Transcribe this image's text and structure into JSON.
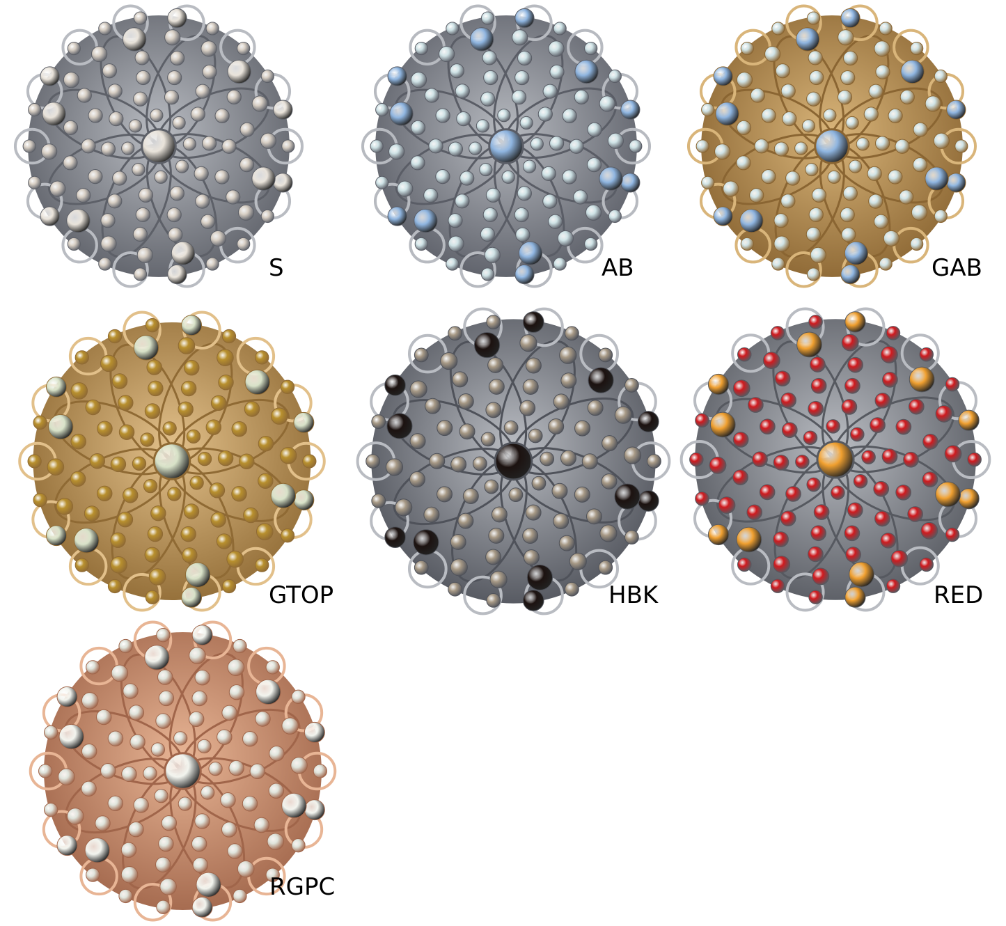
{
  "variants": [
    {
      "code": "S",
      "metal": "#b9bcc2",
      "metal_dark": "#5d6068",
      "gem": "#d8cfc4",
      "accent_gem": "#e9e3da"
    },
    {
      "code": "AB",
      "metal": "#b7bac0",
      "metal_dark": "#5a5d66",
      "gem": "#cfe3e6",
      "accent_gem": "#8fb5e0"
    },
    {
      "code": "GAB",
      "metal": "#d9b57a",
      "metal_dark": "#8a6532",
      "gem": "#cfe3e6",
      "accent_gem": "#8fb5e0"
    },
    {
      "code": "GTOP",
      "metal": "#e2c08a",
      "metal_dark": "#8f6a34",
      "gem": "#b8902e",
      "accent_gem": "#d8e2c8"
    },
    {
      "code": "HBK",
      "metal": "#b9bcc2",
      "metal_dark": "#4f525a",
      "gem": "#a89a86",
      "accent_gem": "#1c1210"
    },
    {
      "code": "RED",
      "metal": "#b9bcc2",
      "metal_dark": "#565960",
      "gem": "#d01a1e",
      "accent_gem": "#f0a030"
    },
    {
      "code": "RGPC",
      "metal": "#e8b595",
      "metal_dark": "#a0654a",
      "gem": "#dfe4dc",
      "accent_gem": "#f2f4ee"
    }
  ]
}
